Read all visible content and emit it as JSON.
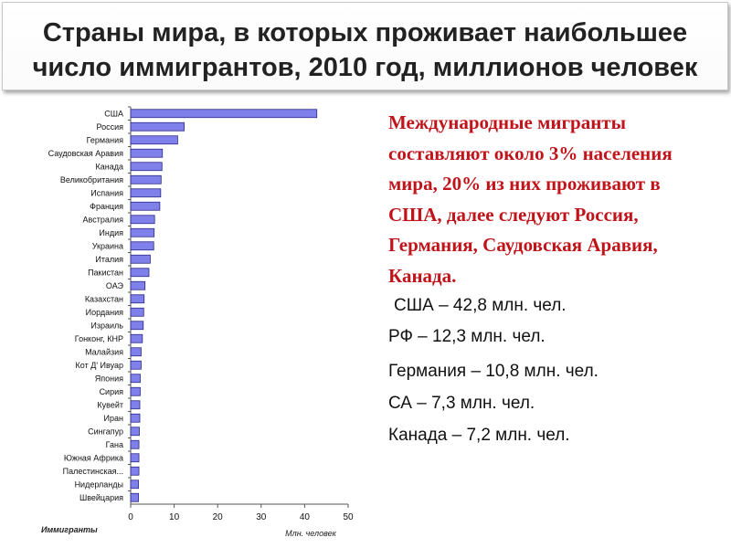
{
  "slide": {
    "title": "Страны мира, в которых проживает наибольшее число иммигрантов, 2010 год, миллионов человек"
  },
  "text_panel": {
    "paragraph": "Международные мигранты составляют около 3% населения мира, 20% из них проживают в США, далее следуют Россия, Германия, Саудовская Аравия, Канада.",
    "accent_color": "#c0141a",
    "stats": [
      "США – 42,8 млн. чел.",
      "РФ – 12,3 млн. чел.",
      "Германия – 10,8 млн. чел.",
      "СА – 7,3 млн. чел.",
      "Канада – 7,2 млн. чел."
    ]
  },
  "chart_data": {
    "type": "bar",
    "orientation": "horizontal",
    "categories": [
      "США",
      "Россия",
      "Германия",
      "Саудовская Аравия",
      "Канада",
      "Великобритания",
      "Испания",
      "Франция",
      "Австралия",
      "Индия",
      "Украина",
      "Италия",
      "Пакистан",
      "ОАЭ",
      "Казахстан",
      "Иордания",
      "Израиль",
      "Гонконг, КНР",
      "Малайзия",
      "Кот Д' Ивуар",
      "Япония",
      "Сирия",
      "Кувейт",
      "Иран",
      "Сингапур",
      "Гана",
      "Южная Африка",
      "Палестинская...",
      "Нидерланды",
      "Швейцария"
    ],
    "values": [
      42.8,
      12.3,
      10.8,
      7.3,
      7.2,
      7.0,
      6.9,
      6.7,
      5.5,
      5.4,
      5.3,
      4.5,
      4.2,
      3.3,
      3.1,
      3.0,
      2.9,
      2.7,
      2.4,
      2.4,
      2.2,
      2.2,
      2.1,
      2.1,
      2.0,
      1.9,
      1.9,
      1.9,
      1.8,
      1.8
    ],
    "xlim": [
      0,
      50
    ],
    "xticks": [
      0,
      10,
      20,
      30,
      40,
      50
    ],
    "xlabel": "Млн. человек",
    "series_label": "Иммигранты",
    "bar_color": "#8080ea",
    "bar_edge_color": "#2a2a88",
    "grid": false
  }
}
